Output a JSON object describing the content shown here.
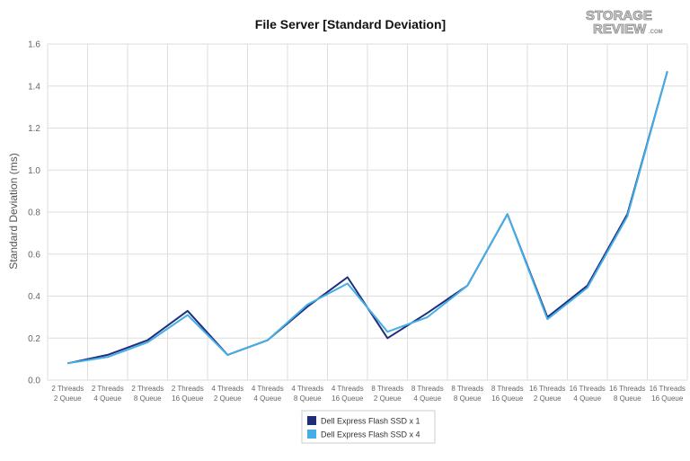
{
  "chart_data": {
    "type": "line",
    "title": "File Server [Standard Deviation]",
    "ylabel": "Standard Deviation (ms)",
    "xlabel": "",
    "ylim": [
      0,
      1.6
    ],
    "yticks": [
      "0.0",
      "0.2",
      "0.4",
      "0.6",
      "0.8",
      "1.0",
      "1.2",
      "1.4",
      "1.6"
    ],
    "grid": true,
    "legend_position": "bottom",
    "categories": [
      [
        "2 Threads",
        "2 Queue"
      ],
      [
        "2 Threads",
        "4 Queue"
      ],
      [
        "2 Threads",
        "8 Queue"
      ],
      [
        "2 Threads",
        "16 Queue"
      ],
      [
        "4 Threads",
        "2 Queue"
      ],
      [
        "4 Threads",
        "4 Queue"
      ],
      [
        "4 Threads",
        "8 Queue"
      ],
      [
        "4 Threads",
        "16 Queue"
      ],
      [
        "8 Threads",
        "2 Queue"
      ],
      [
        "8 Threads",
        "4 Queue"
      ],
      [
        "8 Threads",
        "8 Queue"
      ],
      [
        "8 Threads",
        "16 Queue"
      ],
      [
        "16 Threads",
        "2 Queue"
      ],
      [
        "16 Threads",
        "4 Queue"
      ],
      [
        "16 Threads",
        "8 Queue"
      ],
      [
        "16 Threads",
        "16 Queue"
      ]
    ],
    "series": [
      {
        "name": "Dell Express Flash SSD x 1",
        "color": "#1f2d7c",
        "values": [
          0.08,
          0.12,
          0.19,
          0.33,
          0.12,
          0.19,
          0.35,
          0.49,
          0.2,
          0.32,
          0.45,
          0.79,
          0.3,
          0.45,
          0.79,
          1.47
        ]
      },
      {
        "name": "Dell Express Flash SSD x 4",
        "color": "#45aee6",
        "values": [
          0.08,
          0.11,
          0.18,
          0.31,
          0.12,
          0.19,
          0.36,
          0.46,
          0.23,
          0.3,
          0.45,
          0.79,
          0.29,
          0.44,
          0.78,
          1.47
        ]
      }
    ]
  },
  "logo": {
    "line1": "STORAGE",
    "line2": "REVIEW",
    "suffix": ".COM"
  },
  "colors": {
    "grid": "#dedede",
    "axis": "#bbbbbb"
  }
}
